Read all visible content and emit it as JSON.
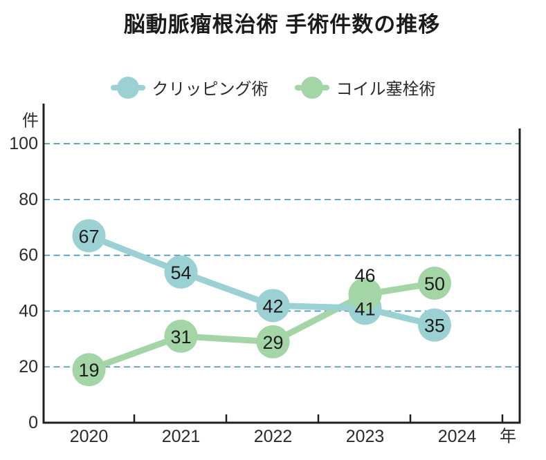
{
  "title": "脳動脈瘤根治術 手術件数の推移",
  "legend": [
    {
      "id": "clipping",
      "label": "クリッピング術",
      "color": "#9bd1d3"
    },
    {
      "id": "coil",
      "label": "コイル塞栓術",
      "color": "#a3d5a6"
    }
  ],
  "chart_data": {
    "type": "line",
    "title": "脳動脈瘤根治術 手術件数の推移",
    "categories": [
      "2020",
      "2021",
      "2022",
      "2023",
      "2024"
    ],
    "series": [
      {
        "id": "clipping",
        "name": "クリッピング術",
        "color": "#9bd1d3",
        "values": [
          67,
          54,
          42,
          41,
          35
        ]
      },
      {
        "id": "coil",
        "name": "コイル塞栓術",
        "color": "#a3d5a6",
        "values": [
          19,
          31,
          29,
          46,
          50
        ]
      }
    ],
    "xlabel": "年",
    "ylabel": "件",
    "ylim": [
      0,
      100
    ],
    "yticks": [
      0,
      20,
      40,
      60,
      80,
      100
    ],
    "grid": "horizontal dashed",
    "gridline_color": "#4d97b4",
    "axis_color": "#1f1f1f",
    "tick_label_color": "#2b2b2b",
    "value_label_color": "#1c1c1c",
    "point_labels_visible": true,
    "legend_position": "top"
  }
}
